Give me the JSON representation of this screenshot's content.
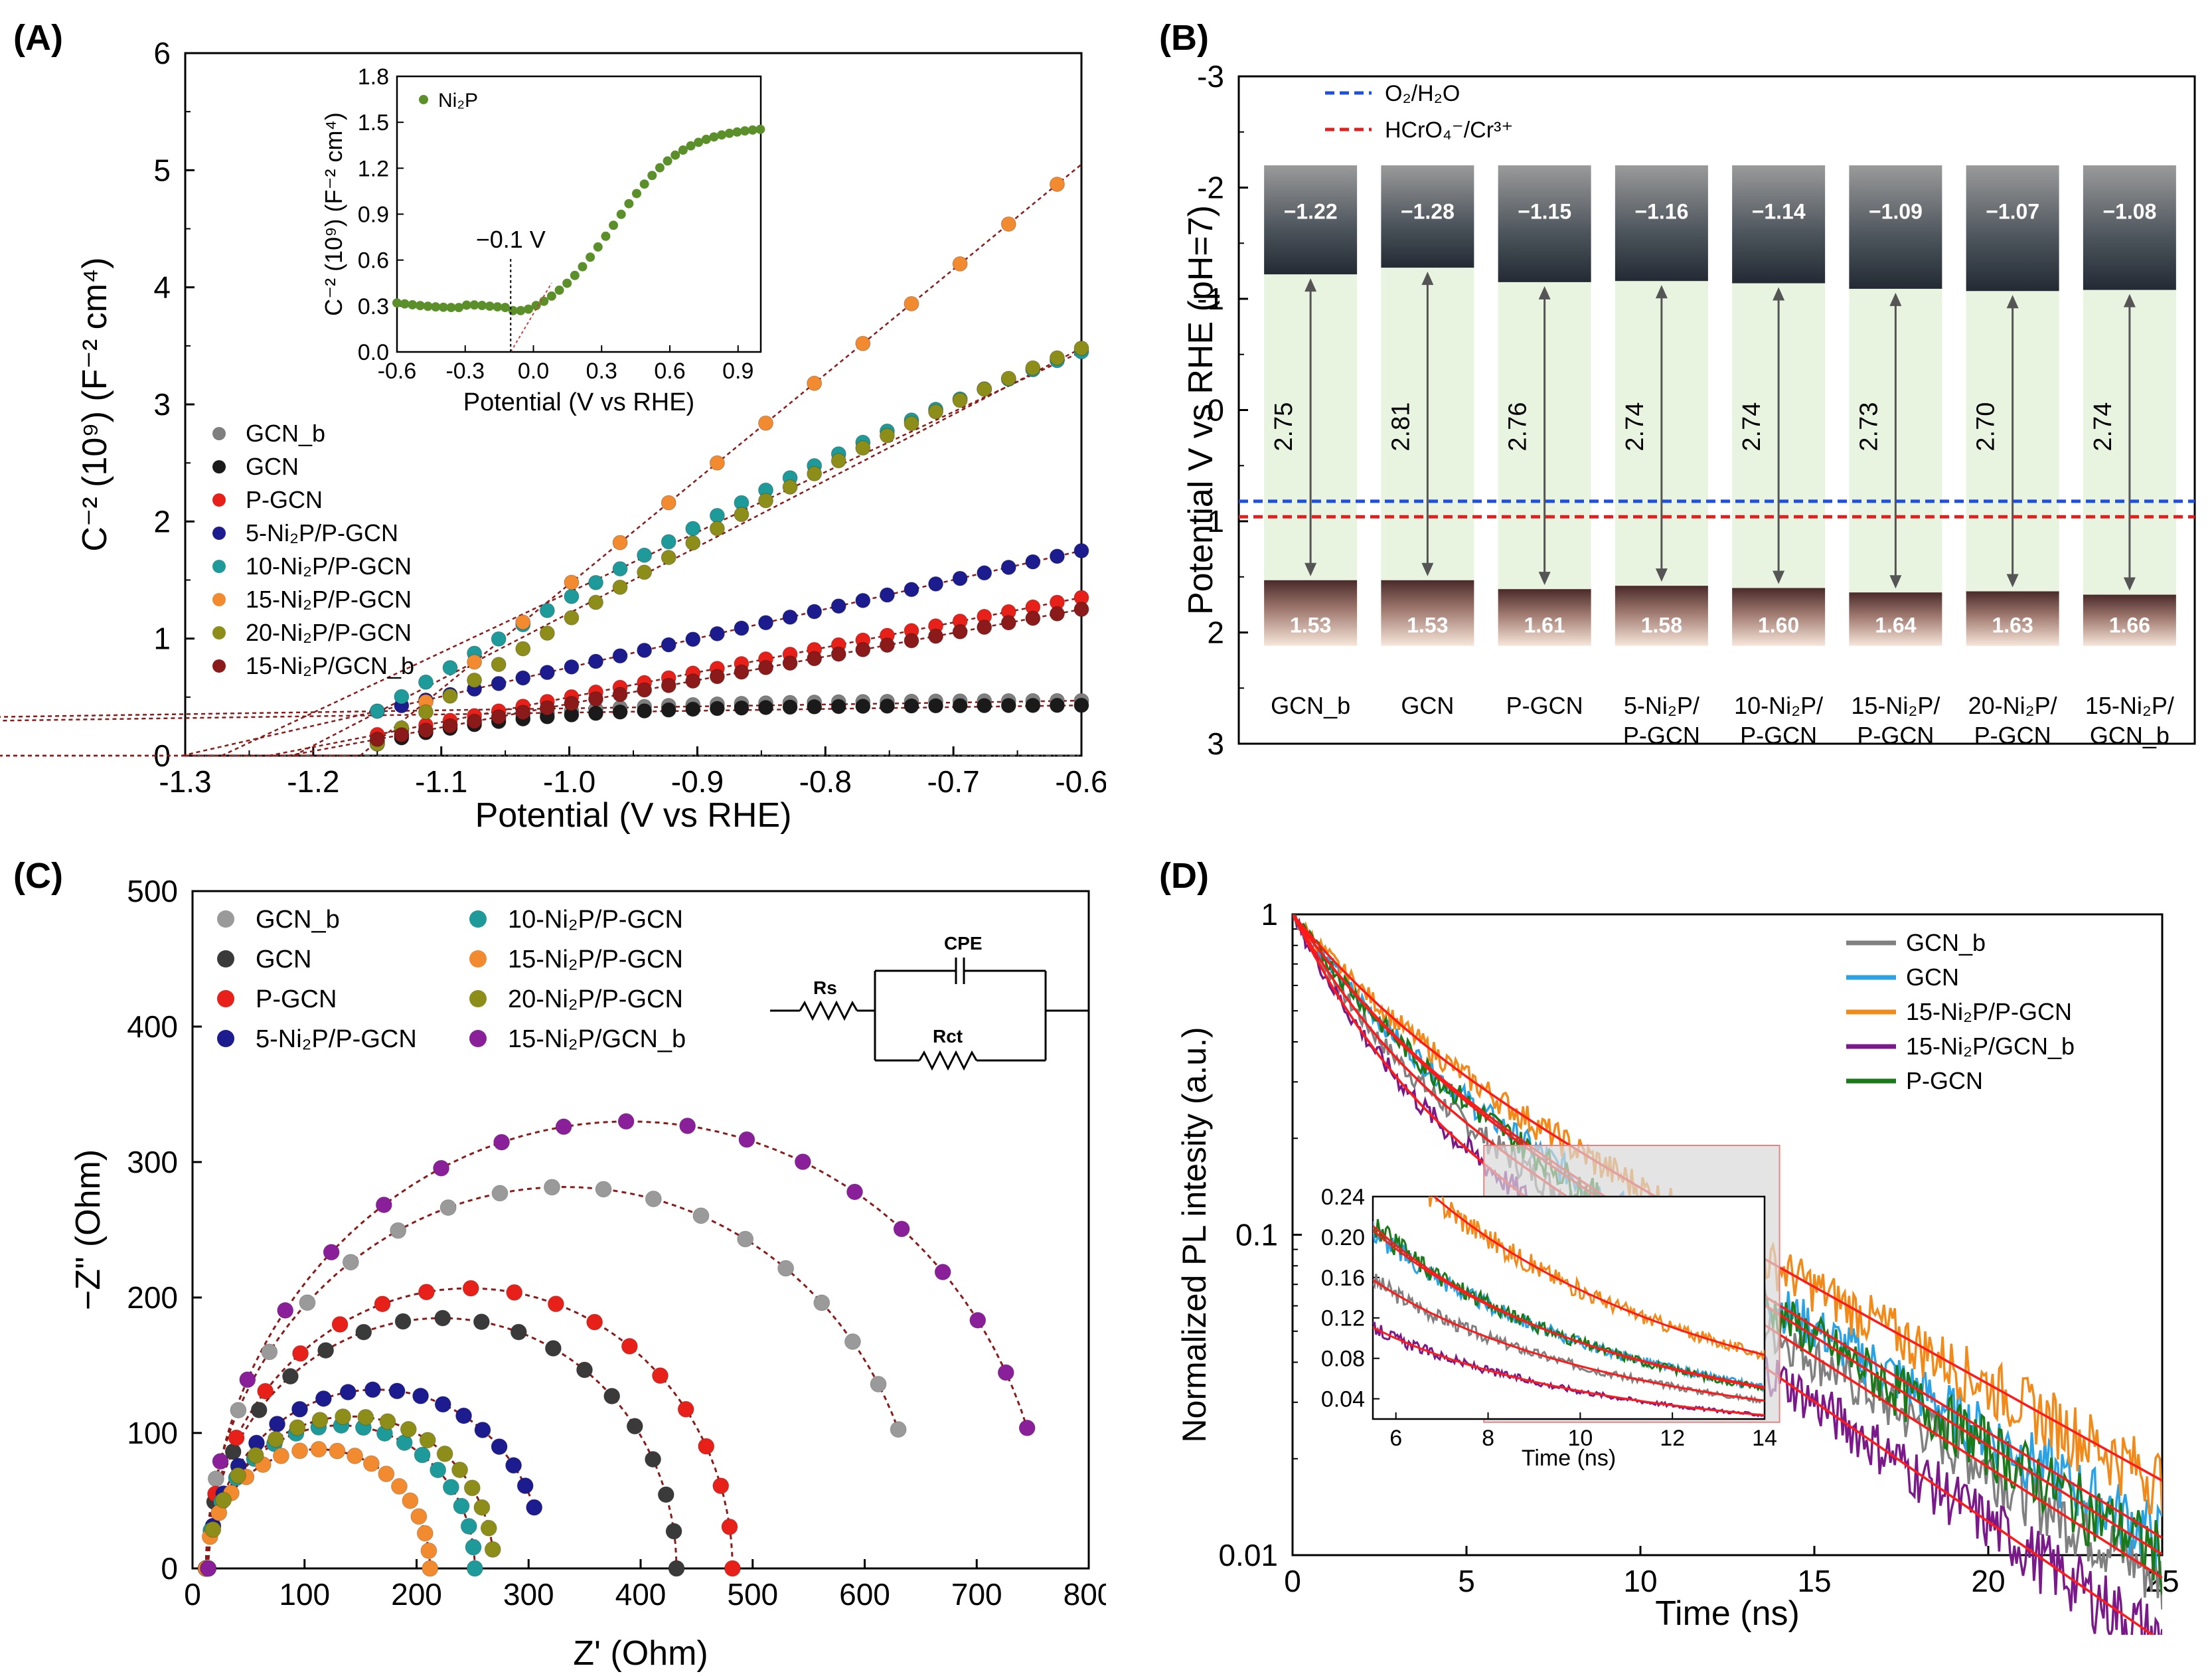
{
  "chart_data": [
    {
      "panel": "(A)",
      "type": "scatter",
      "xlabel": "Potential (V vs RHE)",
      "ylabel": "C⁻² (10⁹) (F⁻² cm⁴)",
      "xlim": [
        -1.3,
        -0.6
      ],
      "ylim": [
        0,
        6
      ],
      "xticks": [
        "-1.3",
        "-1.2",
        "-1.1",
        "-1.0",
        "-0.9",
        "-0.8",
        "-0.7",
        "-0.6"
      ],
      "yticks": [
        "0",
        "1",
        "2",
        "3",
        "4",
        "5",
        "6"
      ],
      "x_range_points": [
        -1.15,
        -0.6
      ],
      "series": [
        {
          "name": "GCN_b",
          "color": "#7f7f7f",
          "y_start": 0.12,
          "y_end": 0.47,
          "shape": "sat",
          "k": 5
        },
        {
          "name": "GCN",
          "color": "#1a1a1a",
          "y_start": 0.1,
          "y_end": 0.43,
          "shape": "sat",
          "k": 5
        },
        {
          "name": "P-GCN",
          "color": "#e8201a",
          "y_start": 0.18,
          "y_end": 1.35,
          "shape": "lin",
          "k": 1
        },
        {
          "name": "5-Ni₂P/P-GCN",
          "color": "#1c1c8f",
          "y_start": 0.38,
          "y_end": 1.75,
          "shape": "lin",
          "k": 1
        },
        {
          "name": "10-Ni₂P/P-GCN",
          "color": "#1f9a9a",
          "y_start": 0.38,
          "y_end": 3.45,
          "shape": "s",
          "k": 1
        },
        {
          "name": "15-Ni₂P/P-GCN",
          "color": "#f28a30",
          "y_start": 0.12,
          "y_end": 5.05,
          "shape": "lin",
          "k": 1
        },
        {
          "name": "20-Ni₂P/P-GCN",
          "color": "#8d8d1a",
          "y_start": 0.1,
          "y_end": 3.48,
          "shape": "s",
          "k": 1
        },
        {
          "name": "15-Ni₂P/GCN_b",
          "color": "#8b1a1a",
          "y_start": 0.14,
          "y_end": 1.25,
          "shape": "lin",
          "k": 1
        }
      ],
      "inset": {
        "series_name": "Ni₂P",
        "color": "#5a8f29",
        "xlabel": "Potential (V vs RHE)",
        "ylabel": "C⁻² (10⁹) (F⁻² cm⁴)",
        "xlim": [
          -0.6,
          1.0
        ],
        "ylim": [
          0,
          1.8
        ],
        "xticks": [
          "-0.6",
          "-0.3",
          "0.0",
          "0.3",
          "0.6",
          "0.9"
        ],
        "yticks": [
          "0.0",
          "0.3",
          "0.6",
          "0.9",
          "1.2",
          "1.5",
          "1.8"
        ],
        "annotation": "−0.1 V",
        "flatband_V": -0.1
      }
    },
    {
      "panel": "(B)",
      "type": "bar",
      "ylabel": "Potential V vs RHE (pH=7)",
      "ylim": [
        -3,
        3
      ],
      "yticks": [
        "-3",
        "-2",
        "-1",
        "0",
        "1",
        "2",
        "3"
      ],
      "reference_lines": [
        {
          "label": "O₂/H₂O",
          "value": 0.82,
          "color": "#1f4fe0"
        },
        {
          "label": "HCrO₄⁻/Cr³⁺",
          "value": 0.96,
          "color": "#e01f1f"
        }
      ],
      "categories": [
        {
          "name1": "GCN_b",
          "name2": "",
          "cb": -1.22,
          "vb": 1.53,
          "cb_label": "−1.22",
          "vb_label": "1.53",
          "gap": "2.75"
        },
        {
          "name1": "GCN",
          "name2": "",
          "cb": -1.28,
          "vb": 1.53,
          "cb_label": "−1.28",
          "vb_label": "1.53",
          "gap": "2.81"
        },
        {
          "name1": "P-GCN",
          "name2": "",
          "cb": -1.15,
          "vb": 1.61,
          "cb_label": "−1.15",
          "vb_label": "1.61",
          "gap": "2.76"
        },
        {
          "name1": "5-Ni₂P/",
          "name2": "P-GCN",
          "cb": -1.16,
          "vb": 1.58,
          "cb_label": "−1.16",
          "vb_label": "1.58",
          "gap": "2.74"
        },
        {
          "name1": "10-Ni₂P/",
          "name2": "P-GCN",
          "cb": -1.14,
          "vb": 1.6,
          "cb_label": "−1.14",
          "vb_label": "1.60",
          "gap": "2.74"
        },
        {
          "name1": "15-Ni₂P/",
          "name2": "P-GCN",
          "cb": -1.09,
          "vb": 1.64,
          "cb_label": "−1.09",
          "vb_label": "1.64",
          "gap": "2.73"
        },
        {
          "name1": "20-Ni₂P/",
          "name2": "P-GCN",
          "cb": -1.07,
          "vb": 1.63,
          "cb_label": "−1.07",
          "vb_label": "1.63",
          "gap": "2.70"
        },
        {
          "name1": "15-Ni₂P/",
          "name2": "GCN_b",
          "cb": -1.08,
          "vb": 1.66,
          "cb_label": "−1.08",
          "vb_label": "1.66",
          "gap": "2.74"
        }
      ]
    },
    {
      "panel": "(C)",
      "type": "scatter",
      "xlabel": "Z' (Ohm)",
      "ylabel": "−Z\" (Ohm)",
      "xlim": [
        0,
        800
      ],
      "ylim": [
        0,
        500
      ],
      "xticks": [
        "0",
        "100",
        "200",
        "300",
        "400",
        "500",
        "600",
        "700",
        "800"
      ],
      "yticks": [
        "0",
        "100",
        "200",
        "300",
        "400",
        "500"
      ],
      "series": [
        {
          "name": "GCN_b",
          "color": "#9a9a9a",
          "rs": 12,
          "rct": 640,
          "end_x": 630
        },
        {
          "name": "GCN",
          "color": "#3a3a3a",
          "rs": 12,
          "rct": 420,
          "end_x": 435
        },
        {
          "name": "P-GCN",
          "color": "#e8201a",
          "rs": 12,
          "rct": 470,
          "end_x": 485
        },
        {
          "name": "5-Ni₂P/P-GCN",
          "color": "#1c1c8f",
          "rs": 14,
          "rct": 300,
          "end_x": 305
        },
        {
          "name": "10-Ni₂P/P-GCN",
          "color": "#1f9a9a",
          "rs": 12,
          "rct": 240,
          "end_x": 255
        },
        {
          "name": "15-Ni₂P/P-GCN",
          "color": "#f28a30",
          "rs": 12,
          "rct": 200,
          "end_x": 215
        },
        {
          "name": "20-Ni₂P/P-GCN",
          "color": "#8d8d1a",
          "rs": 14,
          "rct": 255,
          "end_x": 268
        },
        {
          "name": "15-Ni₂P/GCN_b",
          "color": "#8a1f9a",
          "rs": 14,
          "rct": 750,
          "end_x": 745
        }
      ],
      "circuit": {
        "rs": "Rs",
        "cpe": "CPE",
        "rct": "Rct"
      }
    },
    {
      "panel": "(D)",
      "type": "line",
      "xlabel": "Time (ns)",
      "ylabel": "Normalized PL intesity (a.u.)",
      "xlim": [
        0,
        25
      ],
      "ylim_log": [
        0.01,
        1
      ],
      "xticks": [
        "0",
        "5",
        "10",
        "15",
        "20",
        "25"
      ],
      "yticks": [
        "0.01",
        "0.1",
        "1"
      ],
      "series": [
        {
          "name": "GCN_b",
          "color": "#808080",
          "a1": 0.55,
          "t1": 1.5,
          "a2": 0.45,
          "t2": 6.3
        },
        {
          "name": "GCN",
          "color": "#29a3e6",
          "a1": 0.5,
          "t1": 1.8,
          "a2": 0.5,
          "t2": 6.6
        },
        {
          "name": "15-Ni₂P/P-GCN",
          "color": "#f28a1a",
          "a1": 0.45,
          "t1": 2.0,
          "a2": 0.55,
          "t2": 7.2
        },
        {
          "name": "15-Ni₂P/GCN_b",
          "color": "#7a1a8a",
          "a1": 0.6,
          "t1": 1.4,
          "a2": 0.4,
          "t2": 5.8
        },
        {
          "name": "P-GCN",
          "color": "#1a7a1a",
          "a1": 0.5,
          "t1": 1.8,
          "a2": 0.5,
          "t2": 6.4
        }
      ],
      "inset": {
        "xlabel": "Time (ns)",
        "xlim": [
          5.5,
          14
        ],
        "ylim": [
          0.02,
          0.24
        ],
        "xticks": [
          "6",
          "8",
          "10",
          "12",
          "14"
        ],
        "yticks": [
          "0.04",
          "0.08",
          "0.12",
          "0.16",
          "0.20",
          "0.24"
        ]
      }
    }
  ],
  "labels": {
    "A": "(A)",
    "B": "(B)",
    "C": "(C)",
    "D": "(D)"
  }
}
